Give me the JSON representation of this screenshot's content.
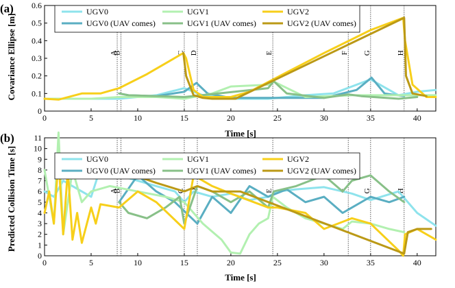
{
  "colors": {
    "ugv0": "#8ee3ec",
    "ugv0_uav": "#5aaec2",
    "ugv1": "#b2f0b0",
    "ugv1_uav": "#88c088",
    "ugv2": "#f7cf1a",
    "ugv2_uav": "#bb9916"
  },
  "events": [
    {
      "label": "A",
      "t": 7.8
    },
    {
      "label": "B",
      "t": 8.2
    },
    {
      "label": "C",
      "t": 15.0
    },
    {
      "label": "D",
      "t": 16.4
    },
    {
      "label": "E",
      "t": 24.5
    },
    {
      "label": "F",
      "t": 32.6
    },
    {
      "label": "G",
      "t": 35.0
    },
    {
      "label": "H",
      "t": 38.6
    }
  ],
  "chart_data": [
    {
      "type": "line",
      "panel_label": "(a)",
      "xlabel": "Time [s]",
      "ylabel": "Covariance Ellipse [m]",
      "xlim": [
        0,
        42
      ],
      "ylim": [
        0,
        0.6
      ],
      "xticks": [
        0,
        5,
        10,
        15,
        20,
        25,
        30,
        35,
        40
      ],
      "yticks": [
        0,
        0.1,
        0.2,
        0.3,
        0.4,
        0.5,
        0.6
      ],
      "ytick_labels": [
        "0",
        "0.1",
        "0.2",
        "0.3",
        "0.4",
        "0.5",
        "0.6"
      ],
      "grid": false,
      "legend_position": "top",
      "legend": [
        "UGV0",
        "UGV1",
        "UGV2",
        "UGV0 (UAV comes)",
        "UGV1 (UAV comes)",
        "UGV2 (UAV comes)"
      ],
      "series": [
        {
          "name": "UGV0",
          "color": "ugv0",
          "x": [
            0,
            5,
            8,
            12,
            15,
            17,
            20,
            24,
            28,
            31,
            35,
            38,
            40,
            42
          ],
          "y": [
            0.07,
            0.07,
            0.07,
            0.09,
            0.13,
            0.09,
            0.07,
            0.07,
            0.09,
            0.1,
            0.18,
            0.09,
            0.11,
            0.12
          ]
        },
        {
          "name": "UGV0 (UAV comes)",
          "color": "ugv0_uav",
          "x": [
            8,
            9,
            12,
            15,
            16.3,
            17.5,
            20,
            24,
            24.6,
            30,
            33.5,
            35.1,
            36.5,
            38.6
          ],
          "y": [
            0.1,
            0.09,
            0.085,
            0.11,
            0.16,
            0.1,
            0.075,
            0.075,
            0.075,
            0.075,
            0.12,
            0.19,
            0.1,
            0.085
          ]
        },
        {
          "name": "UGV1",
          "color": "ugv1",
          "x": [
            0,
            5,
            8,
            12,
            15,
            18,
            20,
            24,
            24.5,
            28,
            33,
            38,
            42
          ],
          "y": [
            0.07,
            0.07,
            0.08,
            0.08,
            0.07,
            0.1,
            0.14,
            0.15,
            0.17,
            0.08,
            0.09,
            0.09,
            0.09
          ]
        },
        {
          "name": "UGV1 (UAV comes)",
          "color": "ugv1_uav",
          "x": [
            8,
            9,
            15,
            24,
            24.6,
            26,
            30,
            32.6,
            34,
            38,
            40
          ],
          "y": [
            0.1,
            0.09,
            0.08,
            0.13,
            0.17,
            0.1,
            0.075,
            0.095,
            0.085,
            0.07,
            0.08
          ]
        },
        {
          "name": "UGV2",
          "color": "ugv2",
          "x": [
            0,
            1.5,
            4,
            6,
            8,
            11,
            14.9,
            15.2,
            16,
            17,
            20,
            22,
            26,
            30,
            35,
            38.5,
            38.7,
            39.5,
            41,
            42
          ],
          "y": [
            0.07,
            0.065,
            0.1,
            0.1,
            0.13,
            0.21,
            0.33,
            0.3,
            0.12,
            0.08,
            0.08,
            0.11,
            0.22,
            0.33,
            0.46,
            0.53,
            0.4,
            0.15,
            0.08,
            0.08
          ]
        },
        {
          "name": "UGV2 (UAV comes)",
          "color": "ugv2_uav",
          "x": [
            14.9,
            15.2,
            16,
            17,
            18,
            20.5,
            38.6,
            38.8,
            39.5,
            41
          ],
          "y": [
            0.33,
            0.2,
            0.09,
            0.075,
            0.07,
            0.07,
            0.53,
            0.2,
            0.1,
            0.085
          ]
        }
      ]
    },
    {
      "type": "line",
      "panel_label": "(b)",
      "xlabel": "Time [s]",
      "ylabel": "Predicted Collision Time [s]",
      "xlim": [
        0,
        42
      ],
      "ylim": [
        0,
        11
      ],
      "xticks": [
        0,
        5,
        10,
        15,
        20,
        25,
        30,
        35,
        40
      ],
      "yticks": [
        0,
        1,
        2,
        3,
        4,
        5,
        6,
        7,
        8,
        9,
        10,
        11
      ],
      "ytick_labels": [
        "0",
        "1",
        "2",
        "3",
        "4",
        "5",
        "6",
        "7",
        "8",
        "9",
        "10",
        "11"
      ],
      "grid": false,
      "legend_position": "top",
      "legend": [
        "UGV0",
        "UGV1",
        "UGV2",
        "UGV0 (UAV comes)",
        "UGV1 (UAV comes)",
        "UGV2 (UAV comes)"
      ],
      "series": [
        {
          "name": "UGV0",
          "color": "ugv0",
          "x": [
            0,
            1,
            2,
            3,
            5,
            6,
            8,
            10,
            12,
            14,
            15,
            16,
            18,
            20,
            22,
            24,
            25,
            27,
            30,
            33,
            35,
            38,
            40,
            42
          ],
          "y": [
            6,
            5.5,
            7,
            6.5,
            5.5,
            8.2,
            7.5,
            7,
            6.5,
            6,
            5,
            6,
            5.5,
            5.8,
            5.2,
            5.5,
            6,
            6.2,
            6.4,
            5.8,
            5.2,
            6,
            4,
            2.8
          ]
        },
        {
          "name": "UGV0 (UAV comes)",
          "color": "ugv0_uav",
          "x": [
            8,
            10,
            12,
            14,
            16.4,
            18,
            20,
            22,
            24,
            26,
            28,
            30,
            32,
            35,
            37,
            38.6
          ],
          "y": [
            5,
            7.5,
            6,
            5,
            3,
            5.5,
            4,
            6.5,
            5.5,
            6.2,
            5,
            5.5,
            4,
            5.5,
            5,
            5.5
          ]
        },
        {
          "name": "UGV1",
          "color": "ugv1",
          "x": [
            0,
            1,
            1.5,
            2,
            3,
            4,
            5,
            7,
            10,
            13,
            15,
            17,
            19,
            20,
            21,
            22,
            23,
            24,
            24.5,
            26,
            28,
            30,
            32,
            33,
            35,
            37,
            38.6
          ],
          "y": [
            8,
            3,
            11.5,
            2,
            8,
            5,
            6,
            6.5,
            6,
            5.5,
            5,
            3,
            1.5,
            0.3,
            0.2,
            2,
            3,
            3.5,
            5.5,
            4.5,
            3.5,
            3,
            2.5,
            3.2,
            3,
            2.5,
            2.2
          ]
        },
        {
          "name": "UGV1 (UAV comes)",
          "color": "ugv1_uav",
          "x": [
            8,
            9,
            11,
            13,
            14.5,
            15,
            16.4,
            18,
            20,
            22,
            24,
            24.6,
            27,
            30,
            32,
            33,
            35,
            37,
            38.6
          ],
          "y": [
            5,
            4,
            3.5,
            4.5,
            5.5,
            3,
            6.5,
            6,
            5,
            6,
            4.5,
            6,
            6.5,
            7.5,
            6,
            7,
            7.5,
            6,
            5
          ]
        },
        {
          "name": "UGV2",
          "color": "ugv2",
          "x": [
            0,
            0.5,
            1,
            1.5,
            2,
            2.5,
            3,
            3.5,
            4,
            5,
            5.5,
            6,
            8,
            10,
            12,
            15,
            16,
            18,
            20,
            24,
            25,
            28,
            30,
            33,
            35,
            38,
            38.5,
            38.7,
            40,
            42
          ],
          "y": [
            4,
            6,
            3,
            9,
            2,
            8,
            1.5,
            4,
            1.2,
            4.5,
            3,
            4.8,
            4.5,
            6,
            5,
            2.5,
            7.5,
            6.5,
            5.8,
            4.5,
            4.5,
            4,
            2.5,
            3.5,
            3,
            0.5,
            0,
            2,
            2.5,
            1.5
          ]
        },
        {
          "name": "UGV2 (UAV comes)",
          "color": "ugv2_uav",
          "x": [
            8.2,
            10,
            12,
            15,
            16.4,
            18,
            20,
            21,
            38.6,
            39,
            40,
            41.5
          ],
          "y": [
            7.8,
            7.4,
            6.8,
            6,
            6.5,
            6,
            6,
            6,
            0.2,
            2.2,
            2.5,
            2.5
          ]
        }
      ]
    }
  ]
}
